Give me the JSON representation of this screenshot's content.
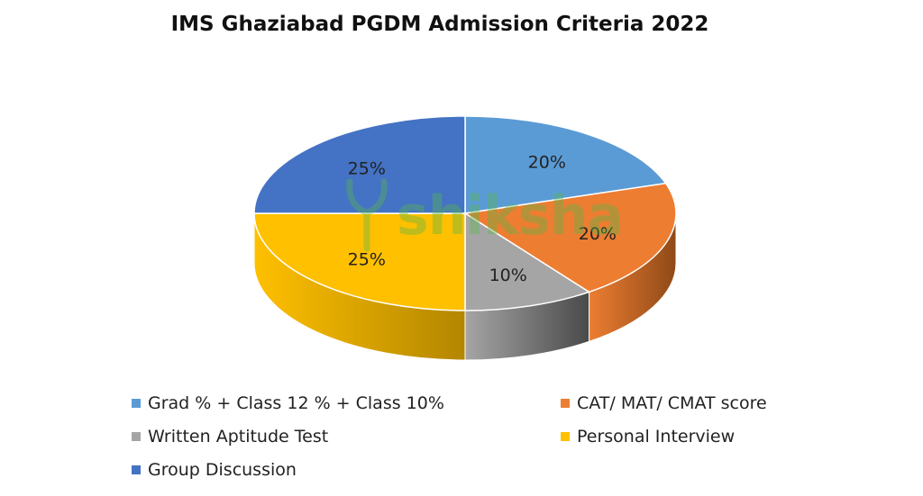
{
  "chart_data": {
    "type": "pie",
    "title": "IMS Ghaziabad PGDM Admission Criteria 2022",
    "slices": [
      {
        "label": "Grad % + Class 12 % + Class 10%",
        "value": 20,
        "display": "20%",
        "color": "#5b9bd5",
        "side_color": "#3d6d99"
      },
      {
        "label": "CAT/ MAT/ CMAT score",
        "value": 20,
        "display": "20%",
        "color": "#ed7d31",
        "side_color": "#8f4a18"
      },
      {
        "label": "Written Aptitude Test",
        "value": 10,
        "display": "10%",
        "color": "#a5a5a5",
        "side_color": "#4a4a4a"
      },
      {
        "label": "Personal Interview",
        "value": 25,
        "display": "25%",
        "color": "#ffc000",
        "side_color": "#b38600"
      },
      {
        "label": "Group Discussion",
        "value": 25,
        "display": "25%",
        "color": "#4472c4",
        "side_color": "#2d4f8a"
      }
    ],
    "legend_position": "bottom",
    "style": "3d"
  },
  "watermark": {
    "text": "shiksha",
    "color": "#57b84b"
  }
}
